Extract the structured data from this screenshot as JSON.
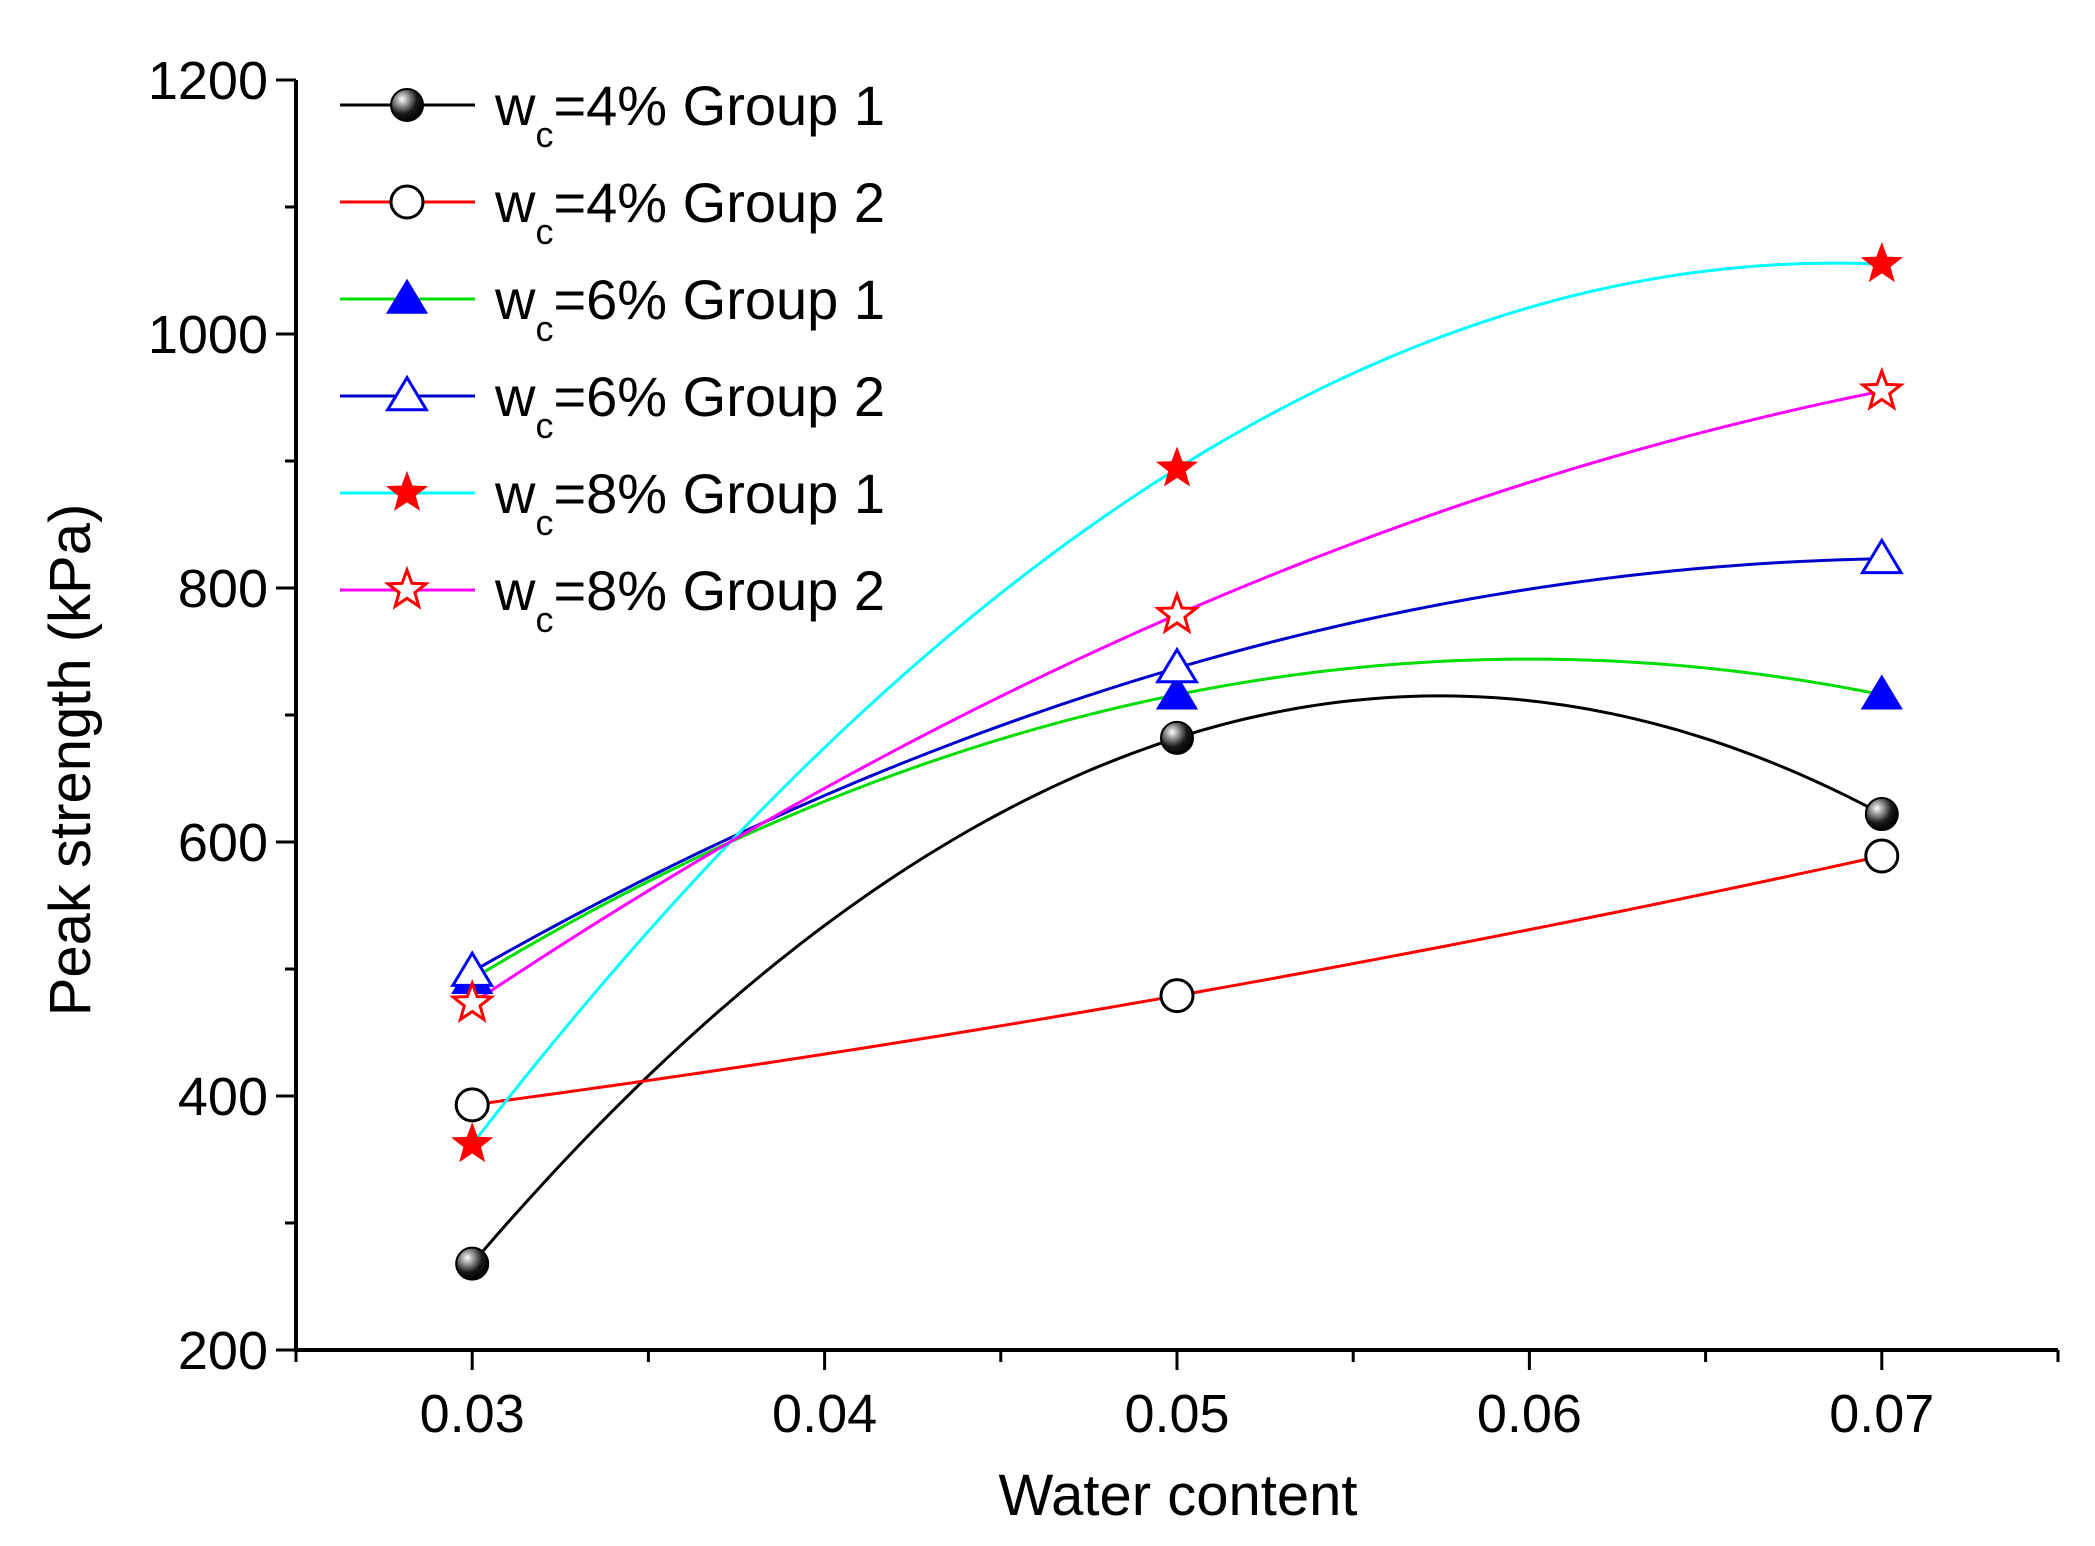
{
  "chart_data": {
    "type": "line",
    "title": "",
    "xlabel": "Water content",
    "ylabel": "Peak strength (kPa)",
    "xlim": [
      0.025,
      0.075
    ],
    "ylim": [
      200,
      1200
    ],
    "x_ticks": [
      {
        "value": 0.03,
        "label": "0.03"
      },
      {
        "value": 0.04,
        "label": "0.04"
      },
      {
        "value": 0.05,
        "label": "0.05"
      },
      {
        "value": 0.06,
        "label": "0.06"
      },
      {
        "value": 0.07,
        "label": "0.07"
      }
    ],
    "y_ticks": [
      {
        "value": 200,
        "label": "200"
      },
      {
        "value": 400,
        "label": "400"
      },
      {
        "value": 600,
        "label": "600"
      },
      {
        "value": 800,
        "label": "800"
      },
      {
        "value": 1000,
        "label": "1000"
      },
      {
        "value": 1200,
        "label": "1200"
      }
    ],
    "x": [
      0.03,
      0.05,
      0.07
    ],
    "legend_position": "top-left",
    "series": [
      {
        "name_prefix": "w",
        "name_sub": "c",
        "name_suffix": "=4% Group 1",
        "values": [
          268,
          682,
          622
        ],
        "line_color": "#000000",
        "marker": "sphere",
        "marker_color": "#000000"
      },
      {
        "name_prefix": "w",
        "name_sub": "c",
        "name_suffix": "=4% Group 2",
        "values": [
          393,
          479,
          589
        ],
        "line_color": "#ff0000",
        "marker": "open-circle",
        "marker_color": "#000000"
      },
      {
        "name_prefix": "w",
        "name_sub": "c",
        "name_suffix": "=6% Group 1",
        "values": [
          492,
          716,
          716
        ],
        "line_color": "#00dd00",
        "marker": "filled-triangle",
        "marker_color": "#0000ff"
      },
      {
        "name_prefix": "w",
        "name_sub": "c",
        "name_suffix": "=6% Group 2",
        "values": [
          498,
          737,
          823
        ],
        "line_color": "#0000cc",
        "marker": "open-triangle",
        "marker_color": "#0000ff"
      },
      {
        "name_prefix": "w",
        "name_sub": "c",
        "name_suffix": "=8% Group 1",
        "values": [
          362,
          894,
          1055
        ],
        "line_color": "#00ffff",
        "marker": "filled-star",
        "marker_color": "#ff0000"
      },
      {
        "name_prefix": "w",
        "name_sub": "c",
        "name_suffix": "=8% Group 2",
        "values": [
          473,
          779,
          955
        ],
        "line_color": "#ff00ff",
        "marker": "open-star",
        "marker_color": "#ff0000"
      }
    ]
  }
}
